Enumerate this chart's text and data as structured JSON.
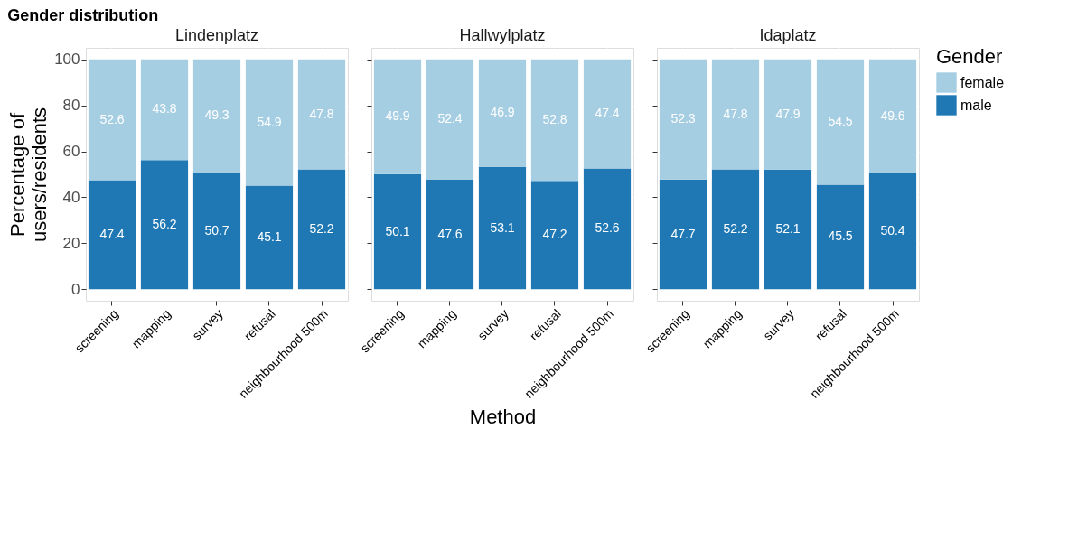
{
  "chart_data": [
    {
      "type": "bar",
      "stacked": true,
      "title": "Gender distribution",
      "subtitle": "Lindenplatz",
      "ylabel": "Percentage of\nusers/residents",
      "categories": [
        "screening",
        "mapping",
        "survey",
        "refusal",
        "neighbourhood 500m"
      ],
      "ylim": [
        -5,
        105
      ],
      "yticks": [
        0,
        20,
        40,
        60,
        80,
        100
      ],
      "grid": true,
      "data_labels": true,
      "legend": "right",
      "legend_title": "Gender",
      "series": [
        {
          "name": "male",
          "color": "#1f78b4",
          "values": [
            47.4,
            56.2,
            50.7,
            45.1,
            52.2
          ]
        },
        {
          "name": "female",
          "color": "#a6cee3",
          "values": [
            52.6,
            43.8,
            49.3,
            54.9,
            47.8
          ]
        }
      ]
    },
    {
      "type": "bar",
      "stacked": true,
      "subtitle": "Hallwylplatz",
      "xlabel": "Method",
      "categories": [
        "screening",
        "mapping",
        "survey",
        "refusal",
        "neighbourhood 500m"
      ],
      "ylim": [
        -5,
        105
      ],
      "yticks": [
        0,
        20,
        40,
        60,
        80,
        100
      ],
      "grid": true,
      "data_labels": true,
      "tick_labels": "x",
      "legend": "right",
      "series": [
        {
          "name": "male",
          "color": "#1f78b4",
          "values": [
            50.1,
            47.6,
            53.1,
            47.2,
            52.6
          ]
        },
        {
          "name": "female",
          "color": "#a6cee3",
          "values": [
            49.9,
            52.4,
            46.9,
            52.8,
            47.4
          ]
        }
      ]
    },
    {
      "type": "bar",
      "stacked": true,
      "subtitle": "Idaplatz",
      "categories": [
        "screening",
        "mapping",
        "survey",
        "refusal",
        "neighbourhood 500m"
      ],
      "ylim": [
        -5,
        105
      ],
      "yticks": [
        0,
        20,
        40,
        60,
        80,
        100
      ],
      "grid": true,
      "data_labels": true,
      "tick_labels": "x",
      "legend": "right",
      "series": [
        {
          "name": "male",
          "color": "#1f78b4",
          "values": [
            47.7,
            52.2,
            52.1,
            45.5,
            50.4
          ]
        },
        {
          "name": "female",
          "color": "#a6cee3",
          "values": [
            52.3,
            47.8,
            47.9,
            54.5,
            49.6
          ]
        }
      ]
    }
  ]
}
